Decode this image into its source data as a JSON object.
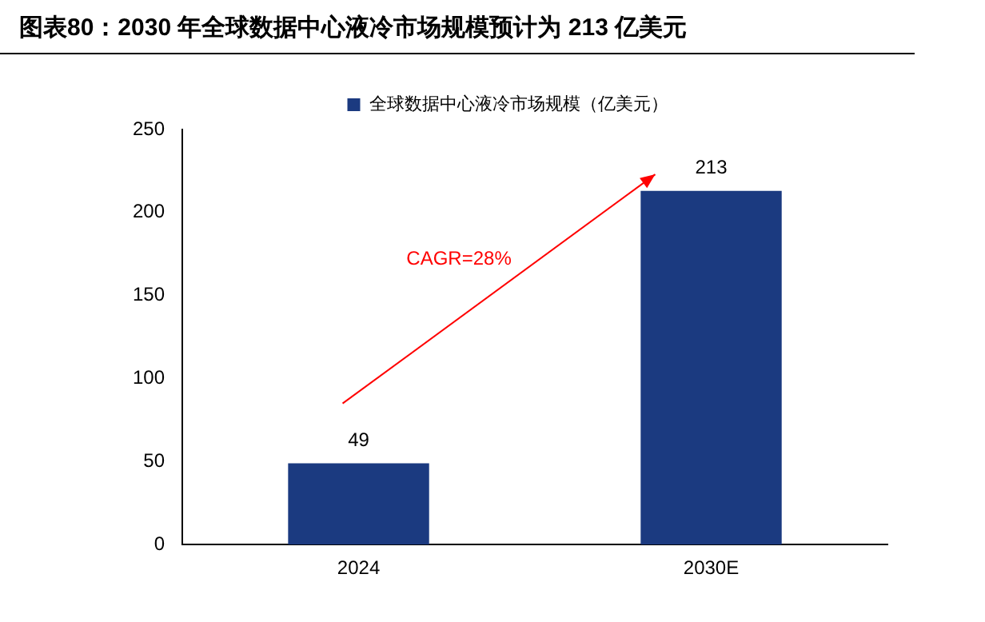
{
  "chart_data": {
    "type": "bar",
    "title": "图表80：2030 年全球数据中心液冷市场规模预计为 213 亿美元",
    "categories": [
      "2024",
      "2030E"
    ],
    "series": [
      {
        "name": "全球数据中心液冷市场规模（亿美元）",
        "color": "#1b3a80",
        "values": [
          49,
          213
        ]
      }
    ],
    "ylim": [
      0,
      250
    ],
    "yticks": [
      0,
      50,
      100,
      150,
      200,
      250
    ],
    "grid": false,
    "legend": "top",
    "data_labels": true,
    "annotations": [
      "CAGR=28%"
    ]
  }
}
